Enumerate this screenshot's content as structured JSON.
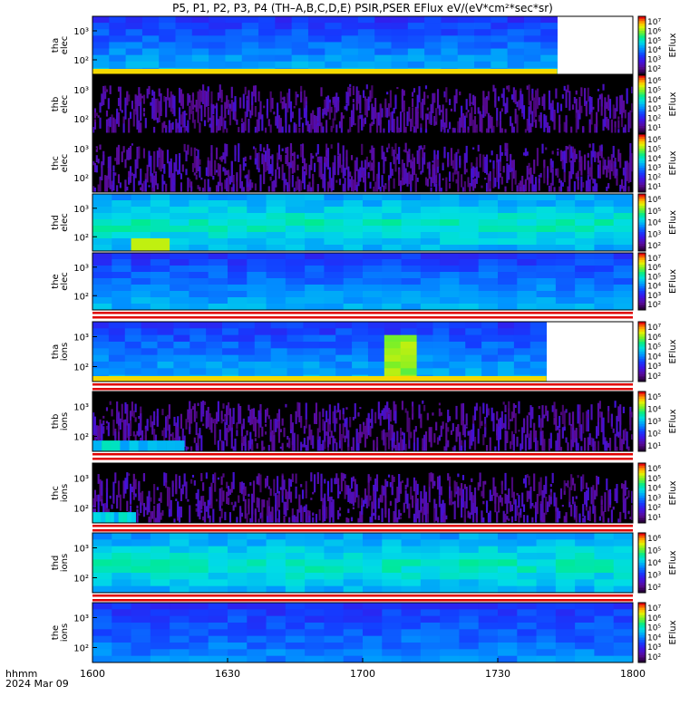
{
  "title": "P5, P1, P2, P3, P4 (TH–A,B,C,D,E) PSIR,PSER EFlux eV/(eV*cm²*sec*sr)",
  "time_axis": {
    "label_line1": "hhmm",
    "label_line2": "2024 Mar 09",
    "ticks": [
      "1600",
      "1630",
      "1700",
      "1730",
      "1800"
    ]
  },
  "chart_data": [
    {
      "type": "heatmap",
      "probe": "tha",
      "species": "elec",
      "ylabel": "tha elec",
      "yticks": [
        "10³",
        "10²"
      ],
      "cbar_label": "EFlux",
      "cbar_ticks": [
        "10⁷",
        "10⁶",
        "10⁵",
        "10⁴",
        "10³",
        "10²"
      ],
      "data_end_fraction": 0.86,
      "profile": "bluegreen",
      "bottom_band": true
    },
    {
      "type": "heatmap",
      "probe": "thb",
      "species": "elec",
      "ylabel": "thb elec",
      "yticks": [
        "10³",
        "10²"
      ],
      "cbar_label": "EFlux",
      "cbar_ticks": [
        "10⁶",
        "10⁵",
        "10⁴",
        "10³",
        "10²",
        "10¹"
      ],
      "data_end_fraction": 1.0,
      "profile": "noise"
    },
    {
      "type": "heatmap",
      "probe": "thc",
      "species": "elec",
      "ylabel": "thc elec",
      "yticks": [
        "10³",
        "10²"
      ],
      "cbar_label": "EFlux",
      "cbar_ticks": [
        "10⁶",
        "10⁵",
        "10⁴",
        "10³",
        "10²",
        "10¹"
      ],
      "data_end_fraction": 1.0,
      "profile": "noise"
    },
    {
      "type": "heatmap",
      "probe": "thd",
      "species": "elec",
      "ylabel": "thd elec",
      "yticks": [
        "10³",
        "10²"
      ],
      "cbar_label": "EFlux",
      "cbar_ticks": [
        "10⁶",
        "10⁵",
        "10⁴",
        "10³",
        "10²"
      ],
      "data_end_fraction": 1.0,
      "profile": "green"
    },
    {
      "type": "heatmap",
      "probe": "the",
      "species": "elec",
      "ylabel": "the elec",
      "yticks": [
        "10³",
        "10²"
      ],
      "cbar_label": "EFlux",
      "cbar_ticks": [
        "10⁷",
        "10⁶",
        "10⁵",
        "10⁴",
        "10³",
        "10²"
      ],
      "data_end_fraction": 1.0,
      "profile": "bluegreen"
    },
    {
      "type": "heatmap",
      "probe": "tha",
      "species": "ions",
      "ylabel": "tha ions",
      "yticks": [
        "10³",
        "10²"
      ],
      "cbar_label": "EFlux",
      "cbar_ticks": [
        "10⁷",
        "10⁶",
        "10⁵",
        "10⁴",
        "10³",
        "10²"
      ],
      "data_end_fraction": 0.84,
      "profile": "bluegreen",
      "bottom_band": true
    },
    {
      "type": "heatmap",
      "probe": "thb",
      "species": "ions",
      "ylabel": "thb ions",
      "yticks": [
        "10³",
        "10²"
      ],
      "cbar_label": "EFlux",
      "cbar_ticks": [
        "10⁵",
        "10⁴",
        "10³",
        "10²",
        "10¹"
      ],
      "data_end_fraction": 1.0,
      "profile": "noise"
    },
    {
      "type": "heatmap",
      "probe": "thc",
      "species": "ions",
      "ylabel": "thc ions",
      "yticks": [
        "10³",
        "10²"
      ],
      "cbar_label": "EFlux",
      "cbar_ticks": [
        "10⁶",
        "10⁵",
        "10⁴",
        "10³",
        "10²",
        "10¹"
      ],
      "data_end_fraction": 1.0,
      "profile": "noise"
    },
    {
      "type": "heatmap",
      "probe": "thd",
      "species": "ions",
      "ylabel": "thd ions",
      "yticks": [
        "10³",
        "10²"
      ],
      "cbar_label": "EFlux",
      "cbar_ticks": [
        "10⁶",
        "10⁵",
        "10⁴",
        "10³",
        "10²"
      ],
      "data_end_fraction": 1.0,
      "profile": "green"
    },
    {
      "type": "heatmap",
      "probe": "the",
      "species": "ions",
      "ylabel": "the ions",
      "yticks": [
        "10³",
        "10²"
      ],
      "cbar_label": "EFlux",
      "cbar_ticks": [
        "10⁷",
        "10⁶",
        "10⁵",
        "10⁴",
        "10³",
        "10²"
      ],
      "data_end_fraction": 1.0,
      "profile": "blue"
    }
  ]
}
